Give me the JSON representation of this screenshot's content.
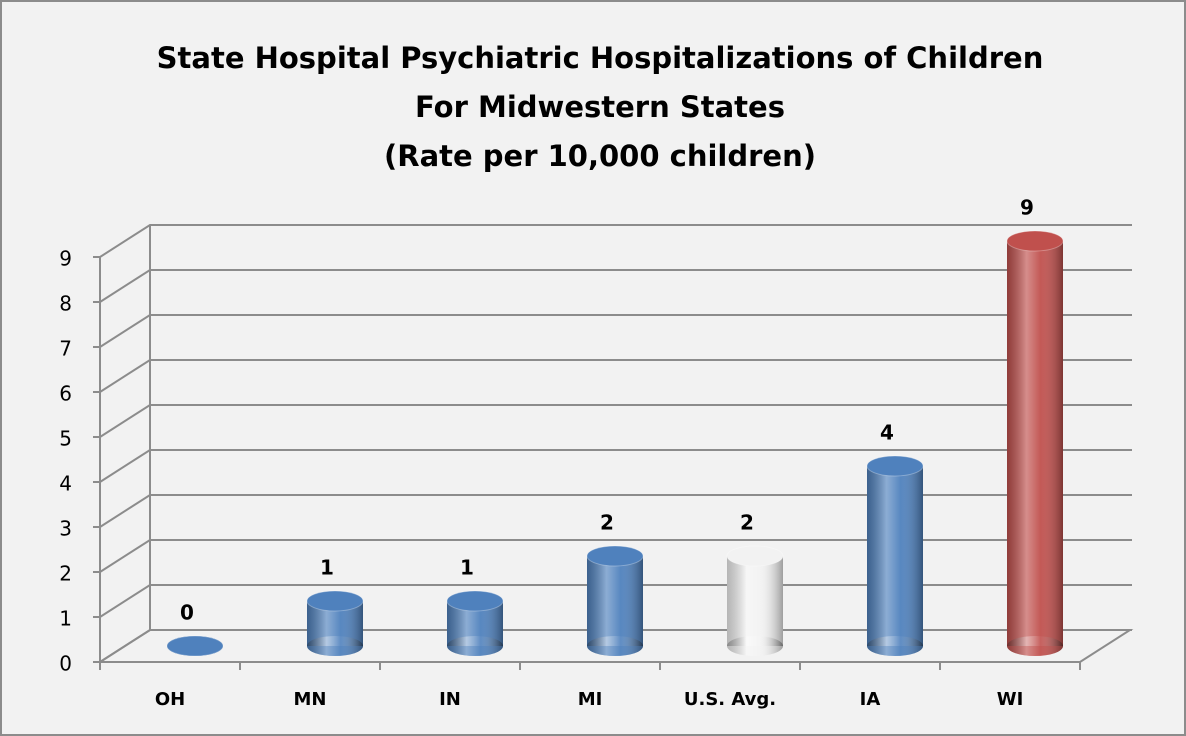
{
  "chart_data": {
    "type": "bar3d",
    "title_lines": [
      "State Hospital Psychiatric Hospitalizations of Children",
      "For Midwestern States",
      "(Rate per 10,000 children)"
    ],
    "categories": [
      "OH",
      "MN",
      "IN",
      "MI",
      "U.S. Avg.",
      "IA",
      "WI"
    ],
    "values": [
      0,
      1,
      1,
      2,
      2,
      4,
      9
    ],
    "colors": [
      "#4f81bd",
      "#4f81bd",
      "#4f81bd",
      "#4f81bd",
      "#f2f2f2",
      "#4f81bd",
      "#c0504d"
    ],
    "ylim": [
      0,
      9
    ],
    "yticks": [
      0,
      1,
      2,
      3,
      4,
      5,
      6,
      7,
      8,
      9
    ],
    "grid": true
  }
}
